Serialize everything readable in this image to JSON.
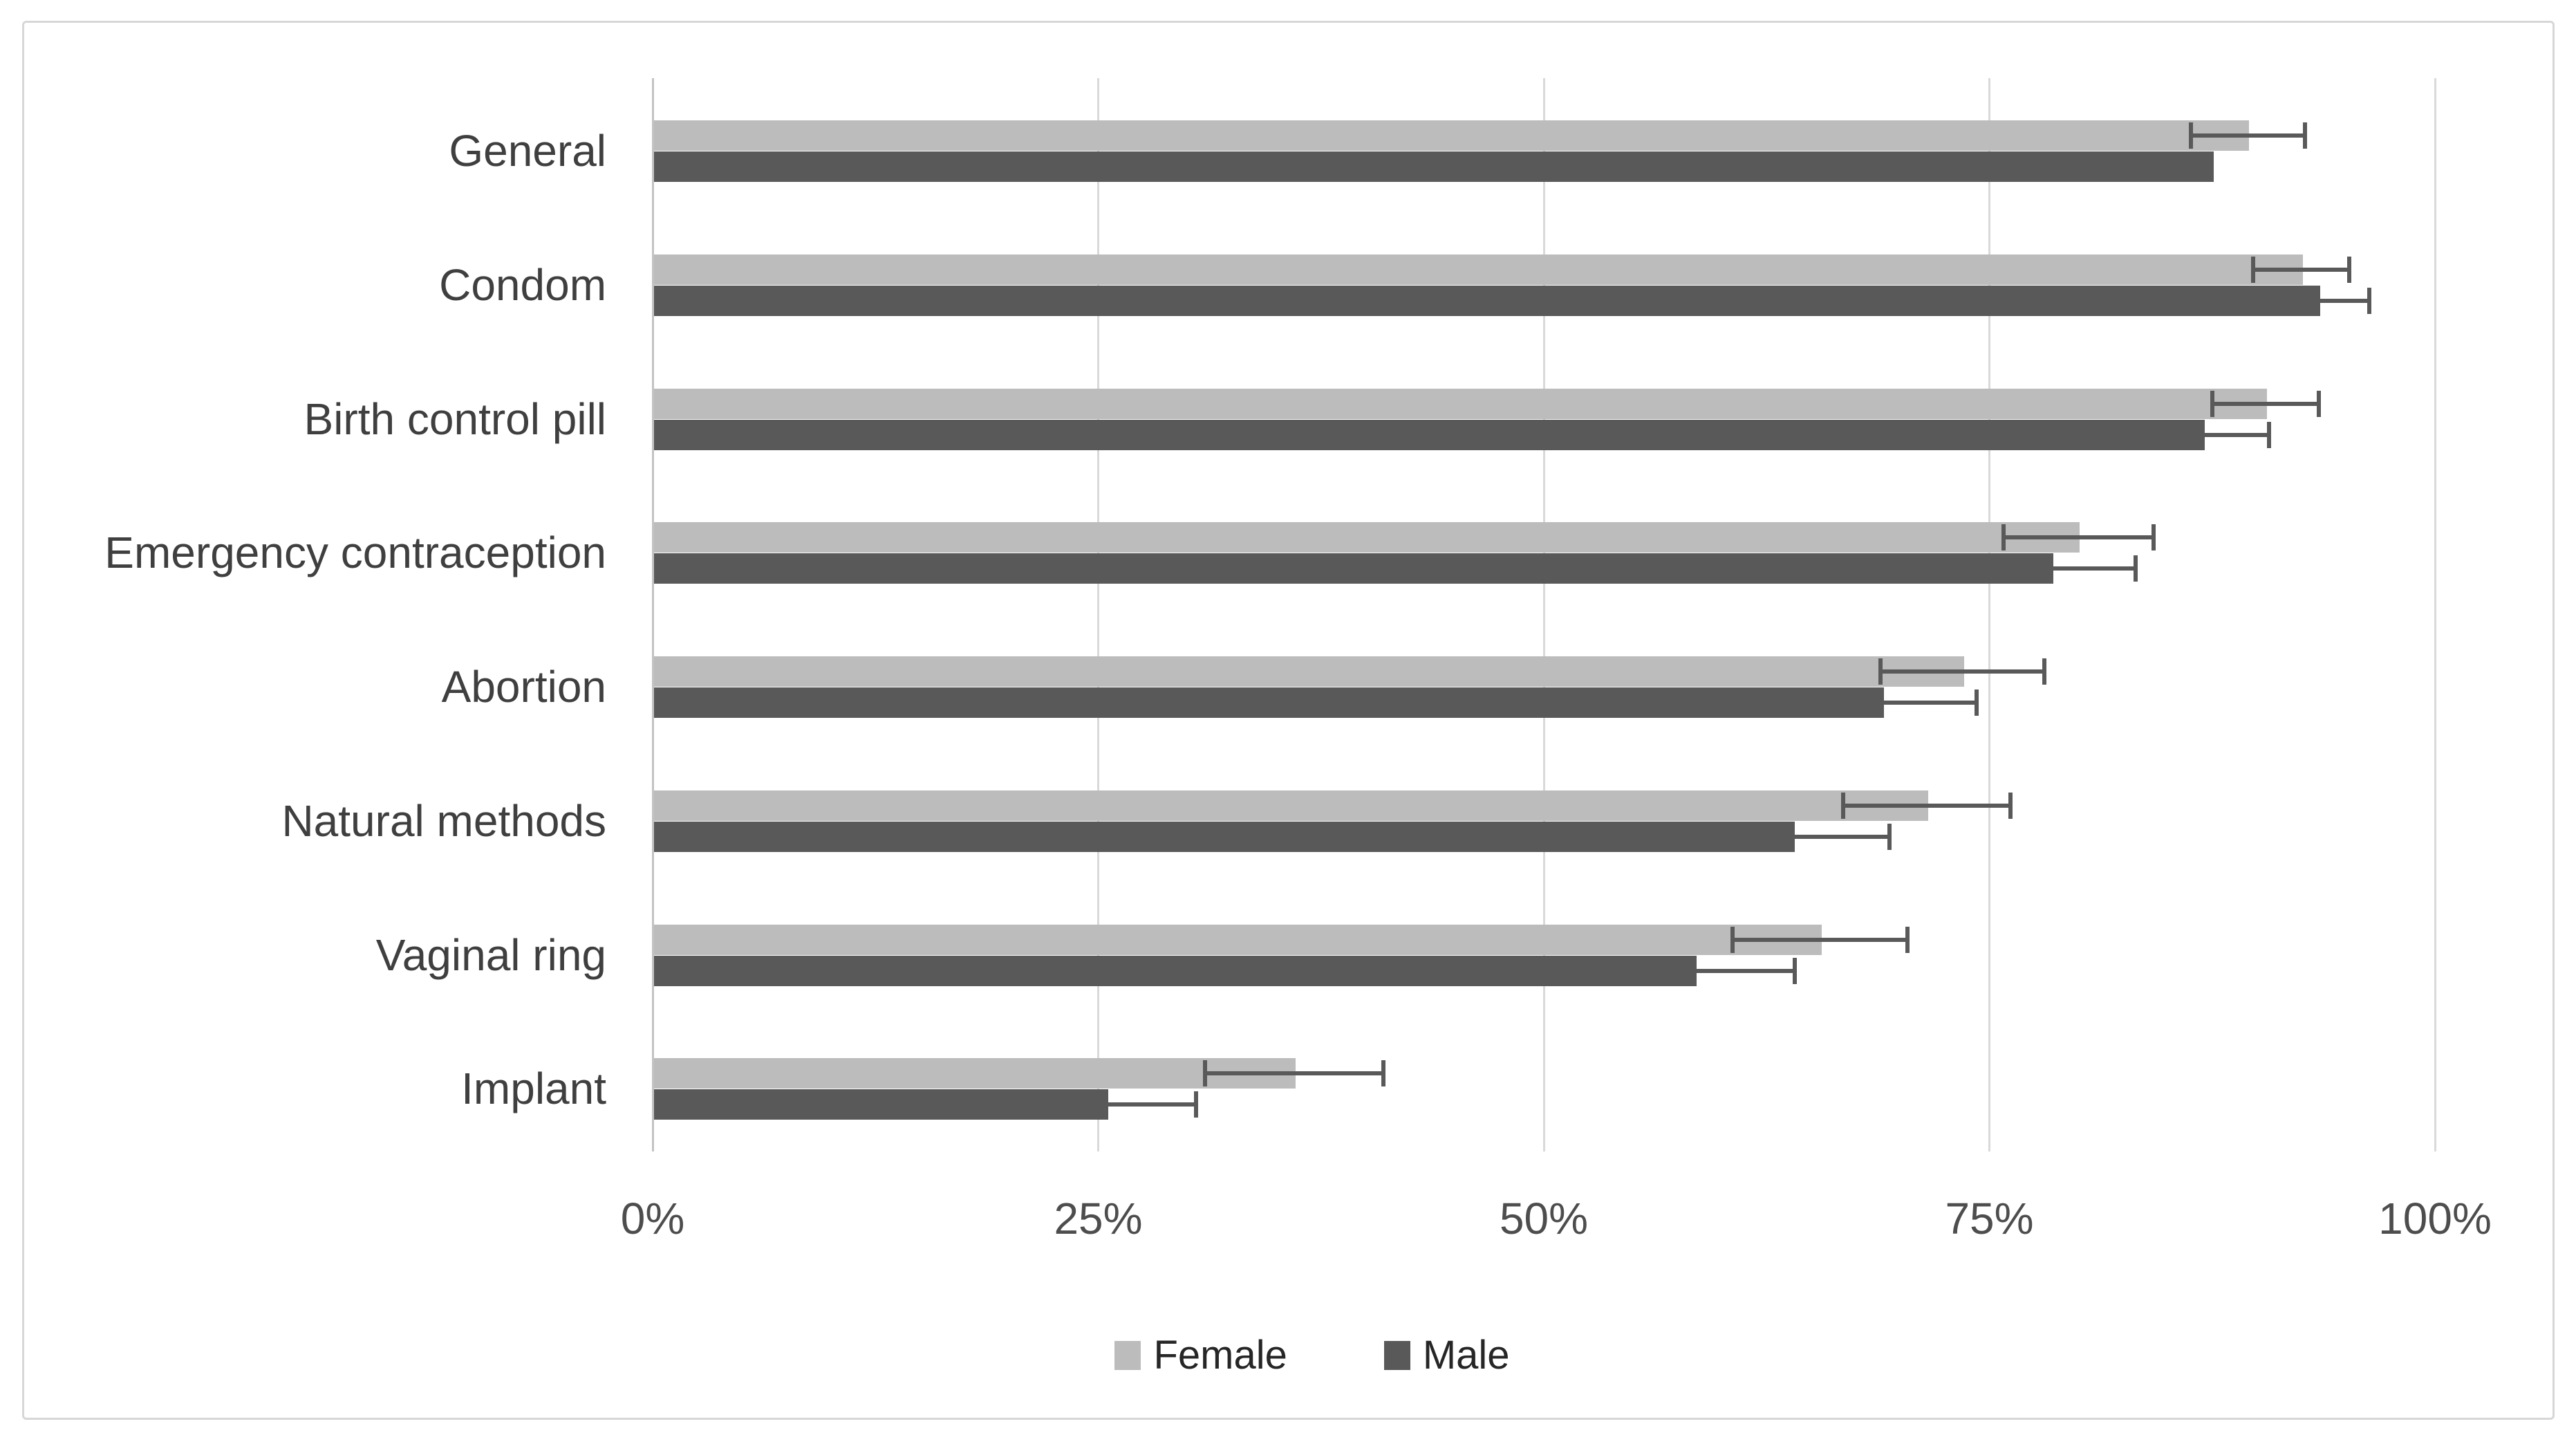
{
  "chart_data": {
    "type": "bar",
    "orientation": "horizontal",
    "title": "",
    "xlabel": "",
    "ylabel": "",
    "categories": [
      "General",
      "Condom",
      "Birth control pill",
      "Emergency contraception",
      "Abortion",
      "Natural methods",
      "Vaginal ring",
      "Implant"
    ],
    "series": [
      {
        "name": "Female",
        "color": "#bcbcbc",
        "values": [
          89.5,
          92.5,
          90.5,
          80,
          73.5,
          71.5,
          65.5,
          36
        ],
        "errors": [
          3.2,
          2.7,
          3.0,
          4.2,
          4.6,
          4.7,
          4.9,
          5.0
        ]
      },
      {
        "name": "Male",
        "color": "#595959",
        "values": [
          87.5,
          93.5,
          87,
          78.5,
          69,
          64,
          58.5,
          25.5
        ],
        "errors": [
          0,
          2.8,
          3.7,
          4.7,
          5.3,
          5.4,
          5.6,
          5.0
        ]
      }
    ],
    "x_ticks": [
      {
        "value": 0,
        "label": "0%"
      },
      {
        "value": 25,
        "label": "25%"
      },
      {
        "value": 50,
        "label": "50%"
      },
      {
        "value": 75,
        "label": "75%"
      },
      {
        "value": 100,
        "label": "100%"
      }
    ],
    "xlim": [
      0,
      100
    ],
    "grid": true,
    "legend_position": "bottom-center",
    "colors": {
      "error_bar": "#595959",
      "gridline": "#d9d9d9",
      "axis_line": "#c3c3c3",
      "category_text": "#3f3f3f",
      "tick_text": "#4d4d4d",
      "legend_text": "#262626",
      "frame_border": "#d7d7d7",
      "background": "#ffffff"
    }
  }
}
